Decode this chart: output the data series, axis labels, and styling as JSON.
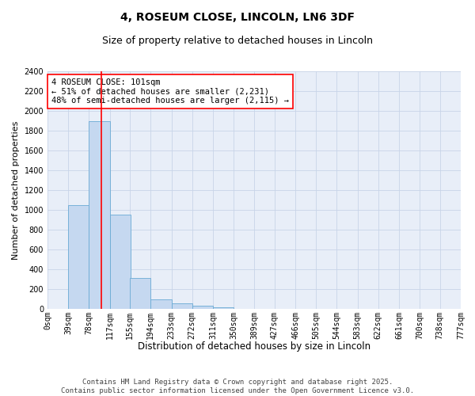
{
  "title": "4, ROSEUM CLOSE, LINCOLN, LN6 3DF",
  "subtitle": "Size of property relative to detached houses in Lincoln",
  "xlabel": "Distribution of detached houses by size in Lincoln",
  "ylabel": "Number of detached properties",
  "bar_values": [
    0,
    1050,
    1900,
    950,
    310,
    100,
    55,
    35,
    20,
    0,
    0,
    0,
    0,
    0,
    0,
    0,
    0,
    0,
    0,
    0
  ],
  "bin_edges": [
    0,
    39,
    78,
    117,
    155,
    194,
    233,
    272,
    311,
    350,
    389,
    427,
    466,
    505,
    544,
    583,
    622,
    661,
    700,
    738,
    777
  ],
  "bin_labels": [
    "0sqm",
    "39sqm",
    "78sqm",
    "117sqm",
    "155sqm",
    "194sqm",
    "233sqm",
    "272sqm",
    "311sqm",
    "350sqm",
    "389sqm",
    "427sqm",
    "466sqm",
    "505sqm",
    "544sqm",
    "583sqm",
    "622sqm",
    "661sqm",
    "700sqm",
    "738sqm",
    "777sqm"
  ],
  "bar_color": "#c5d8f0",
  "bar_edgecolor": "#6aaad4",
  "vline_x": 101,
  "vline_color": "red",
  "vline_linewidth": 1.2,
  "annotation_text": "4 ROSEUM CLOSE: 101sqm\n← 51% of detached houses are smaller (2,231)\n48% of semi-detached houses are larger (2,115) →",
  "annotation_fontsize": 7.5,
  "annotation_box_edgecolor": "red",
  "annotation_box_facecolor": "white",
  "ylim": [
    0,
    2400
  ],
  "yticks": [
    0,
    200,
    400,
    600,
    800,
    1000,
    1200,
    1400,
    1600,
    1800,
    2000,
    2200,
    2400
  ],
  "grid_color": "#c8d4e8",
  "bg_color": "#e8eef8",
  "title_fontsize": 10,
  "subtitle_fontsize": 9,
  "xlabel_fontsize": 8.5,
  "ylabel_fontsize": 8,
  "tick_fontsize": 7,
  "footer_text": "Contains HM Land Registry data © Crown copyright and database right 2025.\nContains public sector information licensed under the Open Government Licence v3.0.",
  "footer_fontsize": 6.5
}
